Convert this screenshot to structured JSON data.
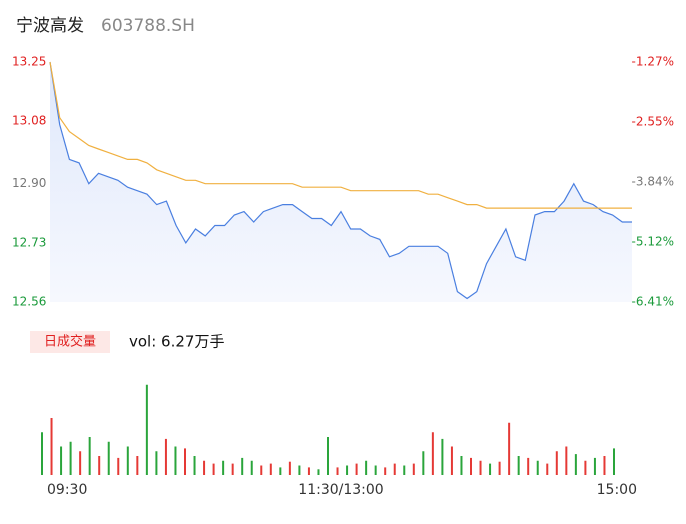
{
  "header": {
    "name": "宁波高发",
    "code": "603788.SH"
  },
  "chart_data": [
    {
      "type": "line",
      "x": [
        0,
        4,
        8,
        12,
        16,
        20,
        24,
        28,
        32,
        36,
        40,
        44,
        48,
        52,
        56,
        60,
        64,
        68,
        72,
        76,
        80,
        84,
        88,
        92,
        96,
        100,
        104,
        108,
        112,
        116,
        120,
        124,
        128,
        132,
        136,
        140,
        144,
        148,
        152,
        156,
        160,
        164,
        168,
        172,
        176,
        180,
        184,
        188,
        192,
        196,
        200,
        204,
        208,
        212,
        216,
        220,
        224,
        228,
        232,
        236,
        240
      ],
      "xlim": [
        0,
        240
      ],
      "xticks": [
        {
          "value": 0,
          "label": "09:30"
        },
        {
          "value": 120,
          "label": "11:30/13:00"
        },
        {
          "value": 240,
          "label": "15:00"
        }
      ],
      "ylim": [
        12.56,
        13.25
      ],
      "yticks": [
        12.56,
        12.73,
        {
          "value": 12.9,
          "label": "12.90"
        },
        13.08,
        13.25
      ],
      "ytick_colors": [
        "#1a9a3a",
        "#1a9a3a",
        "#777777",
        "#e02020",
        "#e02020"
      ],
      "y2lim": [
        -6.41,
        -1.27
      ],
      "y2ticks": [
        {
          "value": -6.41,
          "label": "-6.41%"
        },
        {
          "value": -5.12,
          "label": "-5.12%"
        },
        {
          "value": -3.84,
          "label": "-3.84%"
        },
        {
          "value": -2.55,
          "label": "-2.55%"
        },
        {
          "value": -1.27,
          "label": "-1.27%"
        }
      ],
      "series": [
        {
          "color": "#4a7fe0",
          "values": [
            13.25,
            13.07,
            12.97,
            12.96,
            12.9,
            12.93,
            12.92,
            12.91,
            12.89,
            12.88,
            12.87,
            12.84,
            12.85,
            12.78,
            12.73,
            12.77,
            12.75,
            12.78,
            12.78,
            12.81,
            12.82,
            12.79,
            12.82,
            12.83,
            12.84,
            12.84,
            12.82,
            12.8,
            12.8,
            12.78,
            12.82,
            12.77,
            12.77,
            12.75,
            12.74,
            12.69,
            12.7,
            12.72,
            12.72,
            12.72,
            12.72,
            12.7,
            12.59,
            12.57,
            12.59,
            12.67,
            12.72,
            12.77,
            12.69,
            12.68,
            12.81,
            12.82,
            12.82,
            12.85,
            12.9,
            12.85,
            12.84,
            12.82,
            12.81,
            12.79,
            12.79
          ]
        },
        {
          "color": "#f0b040",
          "values": [
            13.25,
            13.09,
            13.05,
            13.03,
            13.01,
            13.0,
            12.99,
            12.98,
            12.97,
            12.97,
            12.96,
            12.94,
            12.93,
            12.92,
            12.91,
            12.91,
            12.9,
            12.9,
            12.9,
            12.9,
            12.9,
            12.9,
            12.9,
            12.9,
            12.9,
            12.9,
            12.89,
            12.89,
            12.89,
            12.89,
            12.89,
            12.88,
            12.88,
            12.88,
            12.88,
            12.88,
            12.88,
            12.88,
            12.88,
            12.87,
            12.87,
            12.86,
            12.85,
            12.84,
            12.84,
            12.83,
            12.83,
            12.83,
            12.83,
            12.83,
            12.83,
            12.83,
            12.83,
            12.83,
            12.83,
            12.83,
            12.83,
            12.83,
            12.83,
            12.83,
            12.83
          ]
        }
      ]
    },
    {
      "type": "bar",
      "title": "日成交量",
      "subtitle": "vol: 6.27万手",
      "ylim": [
        0,
        100
      ],
      "values": [
        45,
        60,
        30,
        35,
        25,
        40,
        20,
        35,
        18,
        30,
        20,
        95,
        25,
        38,
        30,
        28,
        20,
        15,
        12,
        15,
        12,
        18,
        15,
        10,
        12,
        8,
        14,
        10,
        8,
        6,
        40,
        8,
        10,
        12,
        15,
        10,
        8,
        12,
        10,
        12,
        25,
        45,
        38,
        30,
        20,
        18,
        15,
        12,
        14,
        55,
        20,
        18,
        15,
        12,
        25,
        30,
        22,
        15,
        18,
        20,
        28
      ],
      "colors": [
        "#2aa53b",
        "#e53935",
        "#2aa53b",
        "#2aa53b",
        "#e53935",
        "#2aa53b",
        "#e53935",
        "#2aa53b",
        "#e53935",
        "#2aa53b",
        "#e53935",
        "#2aa53b",
        "#2aa53b",
        "#e53935",
        "#2aa53b",
        "#e53935",
        "#2aa53b",
        "#e53935",
        "#e53935",
        "#2aa53b",
        "#e53935",
        "#2aa53b",
        "#2aa53b",
        "#e53935",
        "#e53935",
        "#2aa53b",
        "#e53935",
        "#2aa53b",
        "#e53935",
        "#2aa53b",
        "#2aa53b",
        "#e53935",
        "#2aa53b",
        "#e53935",
        "#2aa53b",
        "#2aa53b",
        "#e53935",
        "#e53935",
        "#2aa53b",
        "#e53935",
        "#2aa53b",
        "#e53935",
        "#2aa53b",
        "#e53935",
        "#2aa53b",
        "#e53935",
        "#e53935",
        "#2aa53b",
        "#e53935",
        "#e53935",
        "#2aa53b",
        "#e53935",
        "#2aa53b",
        "#e53935",
        "#e53935",
        "#e53935",
        "#2aa53b",
        "#e53935",
        "#2aa53b",
        "#e53935",
        "#2aa53b"
      ]
    }
  ]
}
